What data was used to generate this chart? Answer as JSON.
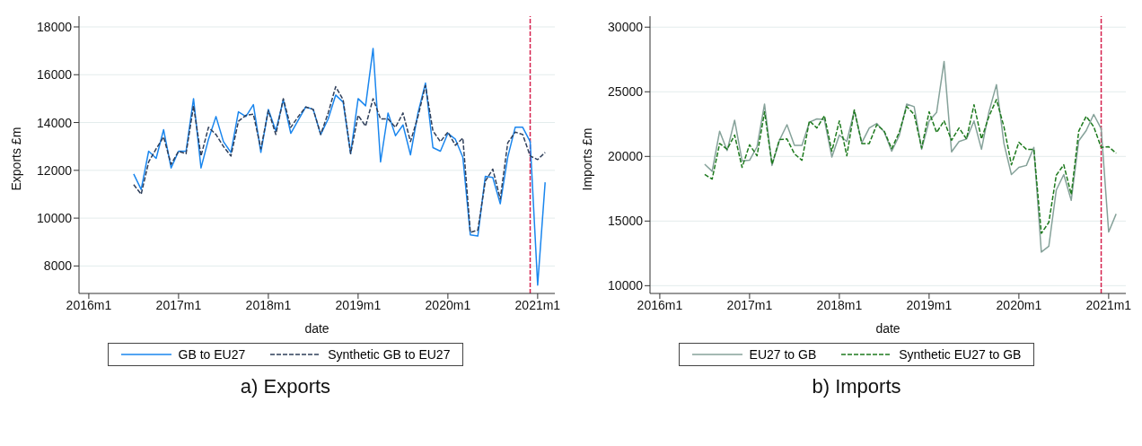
{
  "chart_data": [
    {
      "type": "line",
      "xlabel": "date",
      "ylabel": "Exports £m",
      "x": [
        "2016-07",
        "2016-08",
        "2016-09",
        "2016-10",
        "2016-11",
        "2016-12",
        "2017-01",
        "2017-02",
        "2017-03",
        "2017-04",
        "2017-05",
        "2017-06",
        "2017-07",
        "2017-08",
        "2017-09",
        "2017-10",
        "2017-11",
        "2017-12",
        "2018-01",
        "2018-02",
        "2018-03",
        "2018-04",
        "2018-05",
        "2018-06",
        "2018-07",
        "2018-08",
        "2018-09",
        "2018-10",
        "2018-11",
        "2018-12",
        "2019-01",
        "2019-02",
        "2019-03",
        "2019-04",
        "2019-05",
        "2019-06",
        "2019-07",
        "2019-08",
        "2019-09",
        "2019-10",
        "2019-11",
        "2019-12",
        "2020-01",
        "2020-02",
        "2020-03",
        "2020-04",
        "2020-05",
        "2020-06",
        "2020-07",
        "2020-08",
        "2020-09",
        "2020-10",
        "2020-11",
        "2020-12",
        "2021-01",
        "2021-02"
      ],
      "series": [
        {
          "name": "GB to EU27",
          "color": "#1a86ee",
          "line_style": "solid",
          "values": [
            11850,
            11200,
            12800,
            12500,
            13700,
            12100,
            12800,
            12800,
            15000,
            12100,
            13300,
            14250,
            13200,
            12750,
            14450,
            14250,
            14750,
            12750,
            14550,
            13650,
            14950,
            13550,
            14100,
            14650,
            14550,
            13500,
            14150,
            15150,
            14850,
            12700,
            15000,
            14700,
            17100,
            12350,
            14400,
            13450,
            13900,
            12650,
            14400,
            15650,
            12950,
            12800,
            13550,
            13300,
            12550,
            9300,
            9250,
            11750,
            11700,
            10600,
            12550,
            13800,
            13800,
            13200,
            7200,
            11500
          ]
        },
        {
          "name": "Synthetic GB to EU27",
          "color": "#2f3f5a",
          "line_style": "dashed",
          "values": [
            11400,
            11000,
            12350,
            12900,
            13400,
            12250,
            12800,
            12700,
            14700,
            12600,
            13800,
            13500,
            13000,
            12600,
            14050,
            14300,
            14350,
            12900,
            14500,
            13500,
            15000,
            13800,
            14250,
            14650,
            14550,
            13500,
            14400,
            15500,
            14950,
            12700,
            14300,
            13850,
            15000,
            14150,
            14150,
            13800,
            14400,
            13200,
            14250,
            15550,
            13650,
            13200,
            13600,
            13050,
            13350,
            9400,
            9500,
            11550,
            12050,
            10800,
            13150,
            13600,
            13500,
            12600,
            12450,
            12750
          ]
        }
      ],
      "xlim": [
        "2015-11-22",
        "2021-03-10"
      ],
      "xticks": [
        {
          "value": "2016-01",
          "label": "2016m1"
        },
        {
          "value": "2017-01",
          "label": "2017m1"
        },
        {
          "value": "2018-01",
          "label": "2018m1"
        },
        {
          "value": "2019-01",
          "label": "2019m1"
        },
        {
          "value": "2020-01",
          "label": "2020m1"
        },
        {
          "value": "2021-01",
          "label": "2021m1"
        }
      ],
      "ylim": [
        6850,
        18450
      ],
      "yticks": [
        8000,
        10000,
        12000,
        14000,
        16000,
        18000
      ],
      "grid": "y",
      "legend": "bottom",
      "ref_lines": [
        {
          "axis": "x",
          "value": "2020-12",
          "color": "#d6204d",
          "line_style": "dashed"
        }
      ],
      "annotations": [
        "a) Exports"
      ]
    },
    {
      "type": "line",
      "xlabel": "date",
      "ylabel": "Imports £m",
      "x": [
        "2016-07",
        "2016-08",
        "2016-09",
        "2016-10",
        "2016-11",
        "2016-12",
        "2017-01",
        "2017-02",
        "2017-03",
        "2017-04",
        "2017-05",
        "2017-06",
        "2017-07",
        "2017-08",
        "2017-09",
        "2017-10",
        "2017-11",
        "2017-12",
        "2018-01",
        "2018-02",
        "2018-03",
        "2018-04",
        "2018-05",
        "2018-06",
        "2018-07",
        "2018-08",
        "2018-09",
        "2018-10",
        "2018-11",
        "2018-12",
        "2019-01",
        "2019-02",
        "2019-03",
        "2019-04",
        "2019-05",
        "2019-06",
        "2019-07",
        "2019-08",
        "2019-09",
        "2019-10",
        "2019-11",
        "2019-12",
        "2020-01",
        "2020-02",
        "2020-03",
        "2020-04",
        "2020-05",
        "2020-06",
        "2020-07",
        "2020-08",
        "2020-09",
        "2020-10",
        "2020-11",
        "2020-12",
        "2021-01",
        "2021-02"
      ],
      "series": [
        {
          "name": "EU27 to GB",
          "color": "#86a29a",
          "line_style": "solid",
          "values": [
            19400,
            18850,
            21950,
            20450,
            22800,
            19650,
            19700,
            20750,
            24050,
            19300,
            21250,
            22450,
            20850,
            20850,
            22650,
            22900,
            22850,
            19950,
            21650,
            21150,
            23550,
            21050,
            22200,
            22550,
            21900,
            20400,
            21600,
            24050,
            23850,
            20550,
            22750,
            23400,
            27350,
            20350,
            21150,
            21350,
            22750,
            20550,
            23450,
            25550,
            21000,
            18600,
            19150,
            19300,
            20700,
            12600,
            13050,
            17400,
            18600,
            16600,
            21200,
            22000,
            23250,
            22150,
            14150,
            15550
          ]
        },
        {
          "name": "Synthetic EU27 to GB",
          "color": "#1e7a1e",
          "line_style": "dashed",
          "values": [
            18600,
            18250,
            21000,
            20550,
            21650,
            19150,
            20900,
            20050,
            23450,
            19400,
            21300,
            21350,
            20200,
            19700,
            22750,
            22200,
            23150,
            20400,
            22750,
            20050,
            23600,
            21000,
            21000,
            22450,
            21950,
            20600,
            21850,
            23850,
            23250,
            20650,
            23450,
            21850,
            22750,
            21250,
            22200,
            21350,
            24000,
            21350,
            23100,
            24400,
            22300,
            19350,
            21100,
            20550,
            20550,
            14050,
            14900,
            18550,
            19350,
            17050,
            21950,
            23100,
            22300,
            20700,
            20750,
            20250
          ]
        }
      ],
      "xlim": [
        "2015-11-22",
        "2021-03-10"
      ],
      "xticks": [
        {
          "value": "2016-01",
          "label": "2016m1"
        },
        {
          "value": "2017-01",
          "label": "2017m1"
        },
        {
          "value": "2018-01",
          "label": "2018m1"
        },
        {
          "value": "2019-01",
          "label": "2019m1"
        },
        {
          "value": "2020-01",
          "label": "2020m1"
        },
        {
          "value": "2021-01",
          "label": "2021m1"
        }
      ],
      "ylim": [
        9400,
        30850
      ],
      "yticks": [
        10000,
        15000,
        20000,
        25000,
        30000
      ],
      "grid": "y",
      "legend": "bottom",
      "ref_lines": [
        {
          "axis": "x",
          "value": "2020-12",
          "color": "#d6204d",
          "line_style": "dashed"
        }
      ],
      "annotations": [
        "b) Imports"
      ]
    }
  ]
}
